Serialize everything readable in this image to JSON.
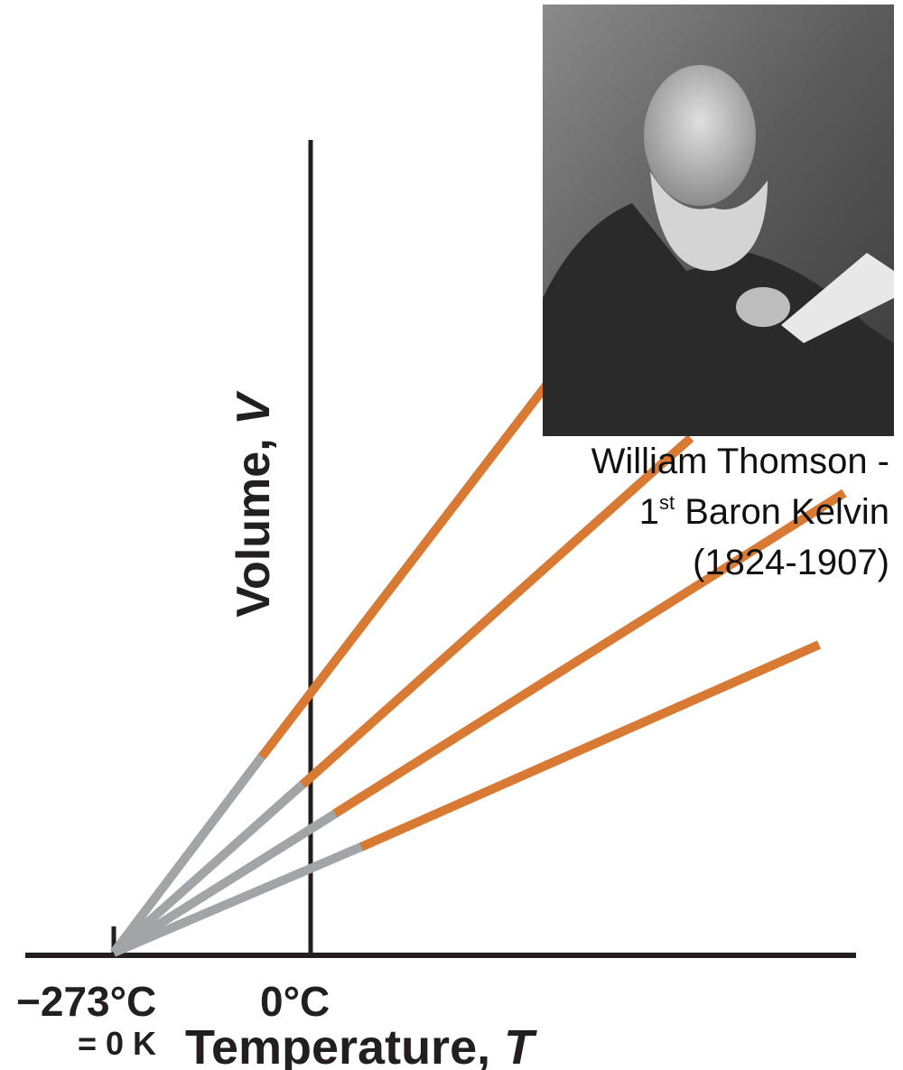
{
  "y_axis_label": {
    "text": "Volume, ",
    "variable": "V"
  },
  "x_axis_label": {
    "text": "Temperature, ",
    "variable": "T"
  },
  "x_labels": {
    "absolute_zero": "−273°C",
    "zero": "0°C",
    "kelvin": "= 0 K"
  },
  "caption": {
    "line1": "William Thomson -",
    "ordinal": "1",
    "suffix": "st",
    "line2": " Baron Kelvin",
    "line3": "(1824-1907)"
  }
}
